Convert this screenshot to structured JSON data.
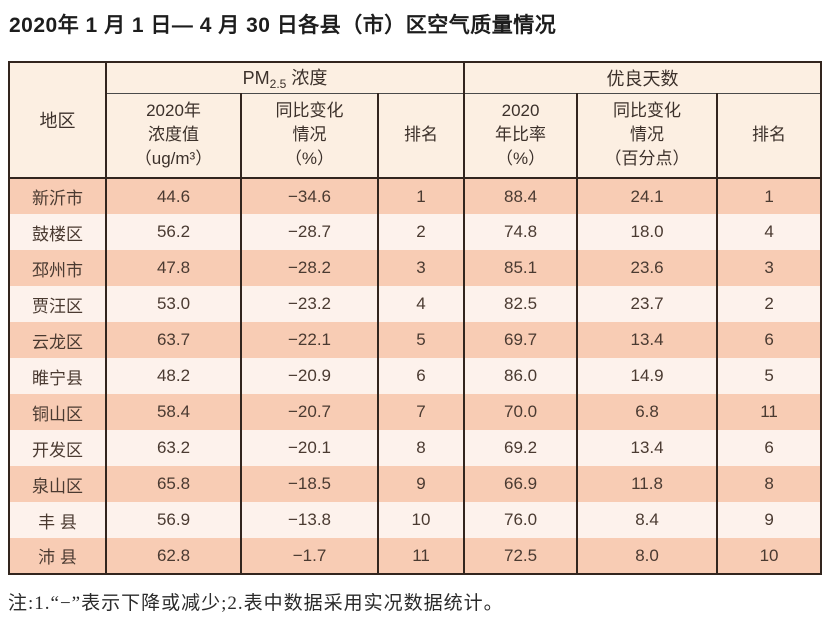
{
  "title": "2020年 1 月 1 日— 4 月 30 日各县（市）区空气质量情况",
  "note": "注:1.“−”表示下降或减少;2.表中数据采用实况数据统计。",
  "colors": {
    "page-bg": "#ffffff",
    "border": "#32251e",
    "header-bg": "#fcefe2",
    "row-odd": "#f8ccb4",
    "row-even": "#fdf2ec",
    "cell-text": "#4a3a31",
    "title-text": "#1d1d1d",
    "note-text": "#2b2b2b"
  },
  "table": {
    "region_header": "地区",
    "group1": {
      "prefix": "PM",
      "sub": "2.5",
      "suffix": " 浓度"
    },
    "group2": "优良天数",
    "subheaders": {
      "pm_value": "2020年\n浓度值\n（ug/m³）",
      "pm_change": "同比变化\n情况\n（%）",
      "pm_rank": "排名",
      "good_ratio": "2020\n年比率\n（%）",
      "good_change": "同比变化\n情况\n（百分点）",
      "good_rank": "排名"
    },
    "rows": [
      {
        "region": "新沂市",
        "pm_value": "44.6",
        "pm_change": "−34.6",
        "pm_rank": "1",
        "good_ratio": "88.4",
        "good_change": "24.1",
        "good_rank": "1"
      },
      {
        "region": "鼓楼区",
        "pm_value": "56.2",
        "pm_change": "−28.7",
        "pm_rank": "2",
        "good_ratio": "74.8",
        "good_change": "18.0",
        "good_rank": "4"
      },
      {
        "region": "邳州市",
        "pm_value": "47.8",
        "pm_change": "−28.2",
        "pm_rank": "3",
        "good_ratio": "85.1",
        "good_change": "23.6",
        "good_rank": "3"
      },
      {
        "region": "贾汪区",
        "pm_value": "53.0",
        "pm_change": "−23.2",
        "pm_rank": "4",
        "good_ratio": "82.5",
        "good_change": "23.7",
        "good_rank": "2"
      },
      {
        "region": "云龙区",
        "pm_value": "63.7",
        "pm_change": "−22.1",
        "pm_rank": "5",
        "good_ratio": "69.7",
        "good_change": "13.4",
        "good_rank": "6"
      },
      {
        "region": "睢宁县",
        "pm_value": "48.2",
        "pm_change": "−20.9",
        "pm_rank": "6",
        "good_ratio": "86.0",
        "good_change": "14.9",
        "good_rank": "5"
      },
      {
        "region": "铜山区",
        "pm_value": "58.4",
        "pm_change": "−20.7",
        "pm_rank": "7",
        "good_ratio": "70.0",
        "good_change": "6.8",
        "good_rank": "11"
      },
      {
        "region": "开发区",
        "pm_value": "63.2",
        "pm_change": "−20.1",
        "pm_rank": "8",
        "good_ratio": "69.2",
        "good_change": "13.4",
        "good_rank": "6"
      },
      {
        "region": "泉山区",
        "pm_value": "65.8",
        "pm_change": "−18.5",
        "pm_rank": "9",
        "good_ratio": "66.9",
        "good_change": "11.8",
        "good_rank": "8"
      },
      {
        "region": "丰 县",
        "pm_value": "56.9",
        "pm_change": "−13.8",
        "pm_rank": "10",
        "good_ratio": "76.0",
        "good_change": "8.4",
        "good_rank": "9"
      },
      {
        "region": "沛 县",
        "pm_value": "62.8",
        "pm_change": "−1.7",
        "pm_rank": "11",
        "good_ratio": "72.5",
        "good_change": "8.0",
        "good_rank": "10"
      }
    ]
  }
}
